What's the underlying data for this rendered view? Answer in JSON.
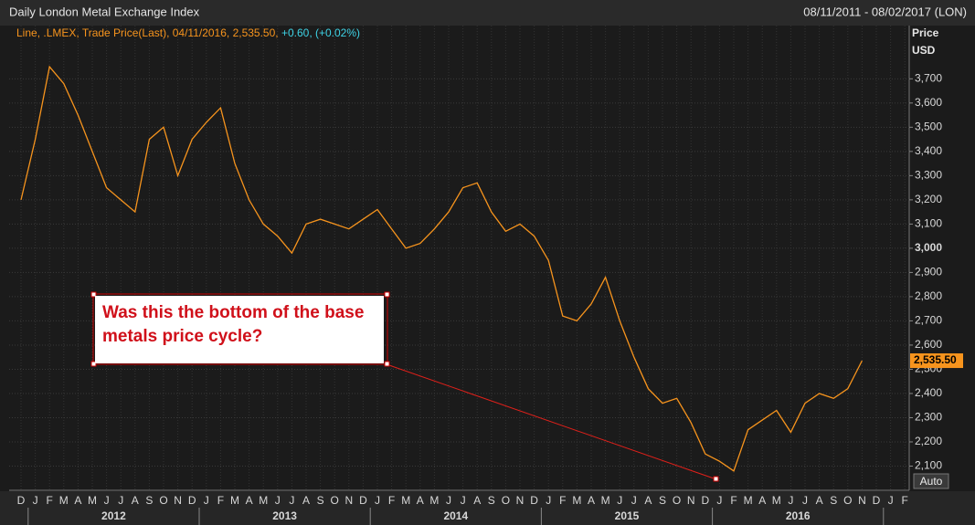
{
  "chart_data": {
    "type": "line",
    "title": "Daily London Metal Exchange Index",
    "date_range": "08/11/2011 - 08/02/2017 (LON)",
    "change_label": "+0.60, (+0.02%)",
    "y_axis_label": "Price USD",
    "button": "Auto",
    "annotation": "Was this the bottom of the base metals price cycle?",
    "categories": [
      "D",
      "J",
      "F",
      "M",
      "A",
      "M",
      "J",
      "J",
      "A",
      "S",
      "O",
      "N",
      "D",
      "J",
      "F",
      "M",
      "A",
      "M",
      "J",
      "J",
      "A",
      "S",
      "O",
      "N",
      "D",
      "J",
      "F",
      "M",
      "A",
      "M",
      "J",
      "J",
      "A",
      "S",
      "O",
      "N",
      "D",
      "J",
      "F",
      "M",
      "A",
      "M",
      "J",
      "J",
      "A",
      "S",
      "O",
      "N",
      "D",
      "J",
      "F",
      "M",
      "A",
      "M",
      "J",
      "J",
      "A",
      "S",
      "O",
      "N",
      "D",
      "J",
      "F"
    ],
    "years": [
      "2012",
      "2013",
      "2014",
      "2015",
      "2016"
    ],
    "series": [
      {
        "name": "Line, .LMEX, Trade Price(Last), 04/11/2016, 2,535.50,",
        "color": "#f7941d",
        "values": [
          3200,
          3450,
          3750,
          3680,
          3550,
          3400,
          3250,
          3200,
          3150,
          3450,
          3500,
          3300,
          3450,
          3520,
          3580,
          3350,
          3200,
          3100,
          3050,
          2980,
          3100,
          3120,
          3100,
          3080,
          3120,
          3160,
          3080,
          3000,
          3020,
          3080,
          3150,
          3250,
          3270,
          3150,
          3070,
          3100,
          3050,
          2950,
          2720,
          2700,
          2770,
          2880,
          2700,
          2550,
          2420,
          2360,
          2380,
          2280,
          2150,
          2120,
          2080,
          2250,
          2290,
          2330,
          2240,
          2360,
          2400,
          2380,
          2420,
          2535.5,
          null,
          null,
          null
        ],
        "value_labels": [
          null,
          null,
          null,
          null,
          null,
          null,
          null,
          null,
          null,
          null,
          null,
          null,
          null,
          null,
          null,
          null,
          null,
          null,
          null,
          null,
          null,
          null,
          null,
          null,
          null,
          null,
          null,
          null,
          null,
          null,
          null,
          null,
          null,
          null,
          null,
          null,
          null,
          null,
          null,
          null,
          null,
          null,
          null,
          null,
          null,
          null,
          null,
          null,
          null,
          null,
          null,
          null,
          null,
          null,
          null,
          null,
          null,
          null,
          null,
          "2,535.50",
          null,
          null,
          null
        ]
      }
    ],
    "ylim": [
      2000,
      3920
    ],
    "yticks": [
      {
        "value": 2100,
        "label": "2,100"
      },
      {
        "value": 2200,
        "label": "2,200"
      },
      {
        "value": 2300,
        "label": "2,300"
      },
      {
        "value": 2400,
        "label": "2,400"
      },
      {
        "value": 2500,
        "label": "2,500"
      },
      {
        "value": 2600,
        "label": "2,600"
      },
      {
        "value": 2700,
        "label": "2,700"
      },
      {
        "value": 2800,
        "label": "2,800"
      },
      {
        "value": 2900,
        "label": "2,900"
      },
      {
        "value": 3000,
        "label": "3,000"
      },
      {
        "value": 3100,
        "label": "3,100"
      },
      {
        "value": 3200,
        "label": "3,200"
      },
      {
        "value": 3300,
        "label": "3,300"
      },
      {
        "value": 3400,
        "label": "3,400"
      },
      {
        "value": 3500,
        "label": "3,500"
      },
      {
        "value": 3600,
        "label": "3,600"
      },
      {
        "value": 3700,
        "label": "3,700"
      }
    ],
    "grid": true
  }
}
